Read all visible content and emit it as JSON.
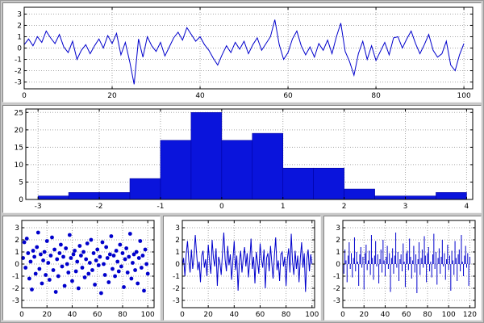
{
  "colors": {
    "series": "#0000cc",
    "hist_fill": "#0a14dc",
    "hist_stroke": "#0000a0",
    "grid": "#a8a8a8",
    "frame": "#000000",
    "chrome": "#c8c8c8"
  },
  "chart_data": [
    {
      "id": "top-timeseries",
      "type": "line",
      "title": "",
      "xlabel": "",
      "ylabel": "",
      "x_range": [
        0,
        102
      ],
      "y_range": [
        -3.6,
        3.6
      ],
      "xticks": [
        0,
        20,
        40,
        60,
        80,
        100
      ],
      "yticks": [
        -3,
        -2,
        -1,
        0,
        1,
        2,
        3
      ],
      "grid": true,
      "color": "#0000cc",
      "values": [
        0.3,
        0.8,
        0.2,
        1.0,
        0.5,
        1.5,
        0.9,
        0.4,
        1.2,
        0.1,
        -0.4,
        0.6,
        -1.0,
        -0.2,
        0.3,
        -0.5,
        0.2,
        0.8,
        0.0,
        1.1,
        0.4,
        1.3,
        -0.6,
        0.5,
        -1.2,
        -3.2,
        0.8,
        -0.8,
        1.0,
        0.2,
        -0.3,
        0.5,
        -0.7,
        0.1,
        0.9,
        1.4,
        0.7,
        1.8,
        1.2,
        0.6,
        1.0,
        0.3,
        -0.2,
        -0.9,
        -1.5,
        -0.6,
        0.2,
        -0.4,
        0.5,
        -0.1,
        0.6,
        -0.5,
        0.3,
        0.9,
        -0.2,
        0.4,
        1.0,
        2.5,
        0.3,
        -1.0,
        -0.4,
        0.8,
        1.5,
        0.2,
        -0.6,
        0.1,
        -0.8,
        0.4,
        -0.2,
        0.7,
        -0.5,
        1.0,
        2.2,
        -0.3,
        -1.2,
        -2.4,
        -0.5,
        0.6,
        -1.0,
        0.2,
        -1.1,
        -0.3,
        0.5,
        -0.6,
        0.9,
        1.0,
        0.0,
        0.8,
        1.5,
        0.4,
        -0.5,
        0.3,
        1.2,
        -0.2,
        -0.8,
        -0.5,
        0.6,
        -1.5,
        -2.0,
        -0.6,
        0.4
      ]
    },
    {
      "id": "histogram",
      "type": "histogram",
      "title": "",
      "xlabel": "",
      "ylabel": "",
      "x_range": [
        -3.2,
        4.1
      ],
      "y_range": [
        0,
        26
      ],
      "xticks": [
        -3,
        -2,
        -1,
        0,
        1,
        2,
        3,
        4
      ],
      "yticks": [
        0,
        5,
        10,
        15,
        20,
        25
      ],
      "grid": true,
      "color": "#0a14dc",
      "bin_edges": [
        -3.0,
        -2.5,
        -2.0,
        -1.5,
        -1.0,
        -0.5,
        0.0,
        0.5,
        1.0,
        1.5,
        2.0,
        2.5,
        3.0,
        3.5,
        4.0
      ],
      "counts": [
        1,
        2,
        2,
        6,
        17,
        25,
        17,
        19,
        9,
        9,
        3,
        1,
        1,
        2
      ]
    },
    {
      "id": "scatter",
      "type": "scatter",
      "title": "",
      "xlabel": "",
      "ylabel": "",
      "x_range": [
        0,
        105
      ],
      "y_range": [
        -3.6,
        3.6
      ],
      "xticks": [
        0,
        20,
        40,
        60,
        80,
        100
      ],
      "yticks": [
        -3,
        -2,
        -1,
        0,
        1,
        2,
        3
      ],
      "grid": true,
      "color": "#0000cc",
      "values": [
        0.5,
        1.8,
        -0.3,
        2.1,
        0.9,
        -1.2,
        0.2,
        -2.1,
        1.1,
        0.6,
        -0.8,
        1.4,
        2.6,
        -0.4,
        0.8,
        -1.6,
        0.3,
        1.0,
        -0.9,
        1.9,
        0.1,
        -1.3,
        0.7,
        2.2,
        -0.5,
        1.2,
        -2.3,
        0.4,
        -1.0,
        0.9,
        1.6,
        -0.2,
        0.6,
        -1.8,
        1.3,
        0.0,
        -0.7,
        2.4,
        0.5,
        -1.4,
        0.8,
        1.1,
        -0.6,
        0.2,
        -2.0,
        1.5,
        0.7,
        -0.3,
        1.0,
        -1.1,
        0.4,
        1.7,
        -0.8,
        0.1,
        2.0,
        -0.5,
        0.9,
        -1.7,
        0.3,
        1.2,
        -0.1,
        0.6,
        -2.4,
        1.8,
        0.0,
        -0.9,
        1.4,
        0.5,
        -1.5,
        0.8,
        2.3,
        -0.4,
        0.7,
        -1.0,
        1.1,
        0.2,
        -0.6,
        1.6,
        -0.2,
        0.9,
        -1.9,
        0.4,
        1.3,
        -0.7,
        0.6,
        2.5,
        -1.2,
        0.1,
        0.8,
        -0.5,
        1.0,
        -1.6,
        0.5,
        1.9,
        -0.3,
        0.7,
        -2.2,
        1.2,
        0.0,
        -0.8
      ]
    },
    {
      "id": "noise-line",
      "type": "line",
      "title": "",
      "xlabel": "",
      "ylabel": "",
      "x_range": [
        0,
        102
      ],
      "y_range": [
        -3.6,
        3.6
      ],
      "xticks": [
        0,
        20,
        40,
        60,
        80,
        100
      ],
      "yticks": [
        -3,
        -2,
        -1,
        0,
        1,
        2,
        3
      ],
      "grid": true,
      "color": "#0000cc",
      "values": [
        -0.2,
        0.5,
        -1.0,
        0.8,
        1.9,
        0.3,
        -0.7,
        1.2,
        -0.4,
        0.6,
        2.4,
        0.9,
        -0.5,
        0.2,
        -1.5,
        0.7,
        1.1,
        -0.3,
        0.4,
        -1.0,
        1.6,
        0.2,
        -0.8,
        2.0,
        0.5,
        -0.2,
        1.3,
        -1.8,
        0.6,
        0.1,
        -0.9,
        1.0,
        2.6,
        0.4,
        -0.6,
        1.5,
        -0.1,
        0.8,
        -1.3,
        0.3,
        1.9,
        -0.5,
        0.7,
        -2.2,
        0.2,
        1.1,
        -0.7,
        0.5,
        1.4,
        -0.2,
        0.9,
        -1.1,
        0.3,
        2.1,
        -0.4,
        0.6,
        -1.6,
        1.0,
        0.2,
        -0.8,
        1.7,
        0.4,
        -0.3,
        1.2,
        -2.0,
        0.5,
        0.9,
        -0.6,
        1.5,
        0.1,
        -1.2,
        0.7,
        2.2,
        -0.5,
        0.3,
        -1.4,
        0.8,
        1.0,
        -0.2,
        0.6,
        -1.8,
        0.4,
        1.3,
        -0.7,
        2.5,
        0.2,
        -0.9,
        1.1,
        -0.4,
        0.7,
        -1.5,
        0.5,
        1.8,
        -0.3,
        0.9,
        -2.3,
        0.4,
        1.2,
        -0.6,
        0.8,
        0.0
      ]
    },
    {
      "id": "stem",
      "type": "stem",
      "title": "",
      "xlabel": "",
      "ylabel": "",
      "x_range": [
        0,
        125
      ],
      "y_range": [
        -3.6,
        3.6
      ],
      "xticks": [
        0,
        20,
        40,
        60,
        80,
        100,
        120
      ],
      "yticks": [
        -3,
        -2,
        -1,
        0,
        1,
        2,
        3
      ],
      "grid": true,
      "color": "#0000cc",
      "values": [
        0.4,
        -0.8,
        1.2,
        0.3,
        -1.5,
        0.7,
        1.8,
        -0.4,
        0.9,
        -1.1,
        0.5,
        2.2,
        -0.6,
        1.0,
        0.2,
        -1.8,
        0.8,
        1.4,
        -0.3,
        0.6,
        -2.1,
        0.9,
        1.6,
        -0.5,
        0.3,
        1.1,
        -0.9,
        2.4,
        0.5,
        -1.3,
        0.7,
        1.9,
        -0.2,
        0.8,
        -1.6,
        0.4,
        1.2,
        -0.7,
        2.0,
        0.3,
        -1.0,
        0.6,
        1.5,
        -0.4,
        0.9,
        -2.3,
        0.5,
        1.3,
        -0.8,
        0.7,
        2.6,
        -0.3,
        1.0,
        -1.4,
        0.4,
        0.8,
        -0.6,
        1.7,
        0.2,
        -1.9,
        0.9,
        1.1,
        -0.5,
        2.1,
        0.6,
        -1.2,
        0.3,
        1.5,
        -0.7,
        0.8,
        -2.4,
        0.4,
        1.8,
        -0.9,
        0.5,
        1.2,
        -0.3,
        2.3,
        0.7,
        -1.5,
        0.9,
        1.4,
        -0.6,
        0.2,
        -1.1,
        0.8,
        2.5,
        -0.4,
        1.0,
        -1.7,
        0.5,
        1.3,
        -0.8,
        0.6,
        2.0,
        -0.2,
        0.9,
        -1.3,
        0.4,
        1.6,
        -0.5,
        0.7,
        -2.2,
        1.1,
        0.3,
        -0.9,
        1.9,
        0.5,
        -1.4,
        0.8,
        1.2,
        -0.6,
        2.4,
        0.2,
        -1.0,
        0.7,
        1.5,
        -0.3,
        0.9,
        -1.8,
        0.6
      ]
    }
  ]
}
